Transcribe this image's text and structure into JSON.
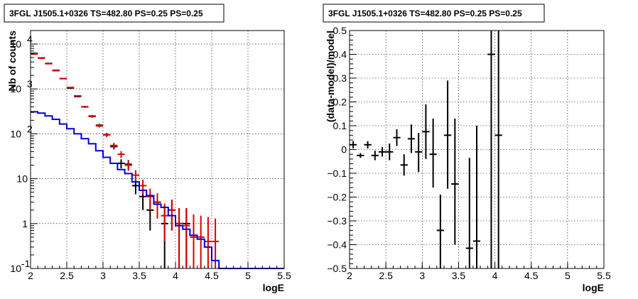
{
  "chart_data": [
    {
      "type": "scatter",
      "title": "3FGL J1505.1+0326 TS=482.80 PS=0.25 PS=0.25",
      "xlabel": "logE",
      "ylabel": "Nb of counts",
      "xlim": [
        2,
        5.5
      ],
      "ylim": [
        0.1,
        20000
      ],
      "log_y": true,
      "grid": true,
      "x_ticks": [
        "2",
        "2.5",
        "3",
        "3.5",
        "4",
        "4.5",
        "5",
        "5.5"
      ],
      "y_ticks": [
        {
          "value": 0.1,
          "label": "10",
          "sup": "-1"
        },
        {
          "value": 1,
          "label": "1",
          "sup": ""
        },
        {
          "value": 10,
          "label": "10",
          "sup": ""
        },
        {
          "value": 100,
          "label": "10",
          "sup": "2"
        },
        {
          "value": 1000,
          "label": "10",
          "sup": "3"
        },
        {
          "value": 10000,
          "label": "10",
          "sup": "4"
        }
      ],
      "series": [
        {
          "color": "#000000",
          "style": "errorbar",
          "half_width": 0.05,
          "points": [
            {
              "x": 2.05,
              "y": 6200,
              "lo": 6120,
              "hi": 6280
            },
            {
              "x": 2.15,
              "y": 4900,
              "lo": 4830,
              "hi": 4970
            },
            {
              "x": 2.25,
              "y": 3700,
              "lo": 3640,
              "hi": 3760
            },
            {
              "x": 2.35,
              "y": 2600,
              "lo": 2550,
              "hi": 2650
            },
            {
              "x": 2.45,
              "y": 1700,
              "lo": 1660,
              "hi": 1740
            },
            {
              "x": 2.55,
              "y": 1050,
              "lo": 1020,
              "hi": 1080
            },
            {
              "x": 2.65,
              "y": 680,
              "lo": 655,
              "hi": 705
            },
            {
              "x": 2.75,
              "y": 400,
              "lo": 380,
              "hi": 420
            },
            {
              "x": 2.85,
              "y": 245,
              "lo": 230,
              "hi": 260
            },
            {
              "x": 2.95,
              "y": 155,
              "lo": 143,
              "hi": 167
            },
            {
              "x": 3.05,
              "y": 95,
              "lo": 85,
              "hi": 105
            },
            {
              "x": 3.15,
              "y": 52,
              "lo": 45,
              "hi": 59
            },
            {
              "x": 3.25,
              "y": 22,
              "lo": 17,
              "hi": 27
            },
            {
              "x": 3.35,
              "y": 21,
              "lo": 16,
              "hi": 26
            },
            {
              "x": 3.45,
              "y": 7,
              "lo": 4.5,
              "hi": 9.5
            },
            {
              "x": 3.55,
              "y": 4,
              "lo": 2,
              "hi": 6
            },
            {
              "x": 3.65,
              "y": 2,
              "lo": 0.7,
              "hi": 3.4
            },
            {
              "x": 3.75,
              "y": 3,
              "lo": 1.3,
              "hi": 4.7
            },
            {
              "x": 3.85,
              "y": 1,
              "lo": 0.1,
              "hi": 2.5
            },
            {
              "x": 3.95,
              "y": 2,
              "lo": 0.7,
              "hi": 3.4
            },
            {
              "x": 4.05,
              "y": 1,
              "lo": 0.1,
              "hi": 2.2
            },
            {
              "x": 4.15,
              "y": 1,
              "lo": 0.1,
              "hi": 2.2
            }
          ]
        },
        {
          "color": "#dd0000",
          "style": "errorbar",
          "half_width": 0.05,
          "points": [
            {
              "x": 2.05,
              "y": 6000,
              "lo": 5920,
              "hi": 6080
            },
            {
              "x": 2.15,
              "y": 4850,
              "lo": 4780,
              "hi": 4920
            },
            {
              "x": 2.25,
              "y": 3650,
              "lo": 3590,
              "hi": 3710
            },
            {
              "x": 2.35,
              "y": 2550,
              "lo": 2500,
              "hi": 2600
            },
            {
              "x": 2.45,
              "y": 1700,
              "lo": 1660,
              "hi": 1740
            },
            {
              "x": 2.55,
              "y": 1080,
              "lo": 1050,
              "hi": 1110
            },
            {
              "x": 2.65,
              "y": 700,
              "lo": 675,
              "hi": 725
            },
            {
              "x": 2.75,
              "y": 400,
              "lo": 380,
              "hi": 420
            },
            {
              "x": 2.85,
              "y": 250,
              "lo": 235,
              "hi": 265
            },
            {
              "x": 2.95,
              "y": 150,
              "lo": 138,
              "hi": 162
            },
            {
              "x": 3.05,
              "y": 95,
              "lo": 85,
              "hi": 105
            },
            {
              "x": 3.15,
              "y": 55,
              "lo": 47,
              "hi": 63
            },
            {
              "x": 3.25,
              "y": 35,
              "lo": 29,
              "hi": 41
            },
            {
              "x": 3.35,
              "y": 20,
              "lo": 15,
              "hi": 25
            },
            {
              "x": 3.45,
              "y": 12,
              "lo": 8.5,
              "hi": 15.5
            },
            {
              "x": 3.55,
              "y": 7,
              "lo": 4.5,
              "hi": 9.5
            },
            {
              "x": 3.65,
              "y": 4,
              "lo": 2,
              "hi": 6
            },
            {
              "x": 3.75,
              "y": 3,
              "lo": 1.3,
              "hi": 4.7
            },
            {
              "x": 3.85,
              "y": 1.5,
              "lo": 0.4,
              "hi": 2.8
            },
            {
              "x": 3.95,
              "y": 2,
              "lo": 0.7,
              "hi": 3.4
            },
            {
              "x": 4.05,
              "y": 1,
              "lo": 0.1,
              "hi": 2.2
            },
            {
              "x": 4.15,
              "y": 0.9,
              "lo": 0.1,
              "hi": 2.2
            },
            {
              "x": 4.25,
              "y": 0.5,
              "lo": 0.1,
              "hi": 1.6
            },
            {
              "x": 4.35,
              "y": 0.5,
              "lo": 0.1,
              "hi": 1.5
            },
            {
              "x": 4.45,
              "y": 0.4,
              "lo": 0.1,
              "hi": 1.4
            },
            {
              "x": 4.55,
              "y": 0.4,
              "lo": 0.1,
              "hi": 1.3
            }
          ]
        },
        {
          "color": "#0000dd",
          "style": "step",
          "bin_edges": [
            2.0,
            2.1,
            2.2,
            2.3,
            2.4,
            2.5,
            2.6,
            2.7,
            2.8,
            2.9,
            3.0,
            3.1,
            3.2,
            3.3,
            3.4,
            3.5,
            3.6,
            3.7,
            3.8,
            3.9,
            4.0,
            4.1,
            4.2,
            4.3,
            4.4,
            4.5,
            4.6,
            5.5
          ],
          "values": [
            310,
            290,
            250,
            210,
            165,
            130,
            100,
            78,
            60,
            42,
            30,
            22,
            16,
            13,
            8.5,
            5.5,
            4.2,
            2.7,
            2.3,
            1.5,
            0.9,
            0.75,
            0.55,
            0.45,
            0.3,
            0.15,
            0.1
          ]
        }
      ]
    },
    {
      "type": "scatter",
      "title": "3FGL J1505.1+0326 TS=482.80 PS=0.25 PS=0.25",
      "xlabel": "logE",
      "ylabel": "(data-model)/model",
      "xlim": [
        2,
        5.5
      ],
      "ylim": [
        -0.5,
        0.5
      ],
      "grid": true,
      "x_ticks": [
        "2",
        "2.5",
        "3",
        "3.5",
        "4",
        "4.5",
        "5",
        "5.5"
      ],
      "y_ticks": [
        "−0.5",
        "−0.4",
        "−0.3",
        "−0.2",
        "−0.1",
        "0",
        "0.1",
        "0.2",
        "0.3",
        "0.4",
        "0.5"
      ],
      "series": [
        {
          "color": "#000000",
          "style": "errorbar",
          "half_width": 0.05,
          "points": [
            {
              "x": 2.05,
              "y": 0.02,
              "lo": 0.005,
              "hi": 0.035
            },
            {
              "x": 2.15,
              "y": -0.025,
              "lo": -0.035,
              "hi": -0.015
            },
            {
              "x": 2.25,
              "y": 0.02,
              "lo": 0.005,
              "hi": 0.035
            },
            {
              "x": 2.35,
              "y": -0.025,
              "lo": -0.045,
              "hi": -0.005
            },
            {
              "x": 2.45,
              "y": -0.01,
              "lo": -0.03,
              "hi": 0.01
            },
            {
              "x": 2.55,
              "y": -0.01,
              "lo": -0.045,
              "hi": 0.025
            },
            {
              "x": 2.65,
              "y": 0.05,
              "lo": 0.015,
              "hi": 0.085
            },
            {
              "x": 2.75,
              "y": -0.065,
              "lo": -0.11,
              "hi": -0.02
            },
            {
              "x": 2.85,
              "y": 0.045,
              "lo": -0.015,
              "hi": 0.105
            },
            {
              "x": 2.95,
              "y": -0.01,
              "lo": -0.095,
              "hi": 0.07
            },
            {
              "x": 3.05,
              "y": 0.075,
              "lo": -0.04,
              "hi": 0.19
            },
            {
              "x": 3.15,
              "y": -0.02,
              "lo": -0.16,
              "hi": 0.13
            },
            {
              "x": 3.25,
              "y": -0.34,
              "lo": -0.5,
              "hi": -0.19
            },
            {
              "x": 3.35,
              "y": 0.06,
              "lo": -0.165,
              "hi": 0.29
            },
            {
              "x": 3.45,
              "y": -0.145,
              "lo": -0.4,
              "hi": 0.13
            },
            {
              "x": 3.65,
              "y": -0.415,
              "lo": -0.5,
              "hi": -0.035
            },
            {
              "x": 3.75,
              "y": -0.385,
              "lo": -0.5,
              "hi": 0.1
            },
            {
              "x": 3.95,
              "y": 0.4,
              "lo": -0.5,
              "hi": 0.5
            },
            {
              "x": 4.05,
              "y": 0.06,
              "lo": -0.5,
              "hi": 0.5
            }
          ]
        }
      ]
    }
  ]
}
